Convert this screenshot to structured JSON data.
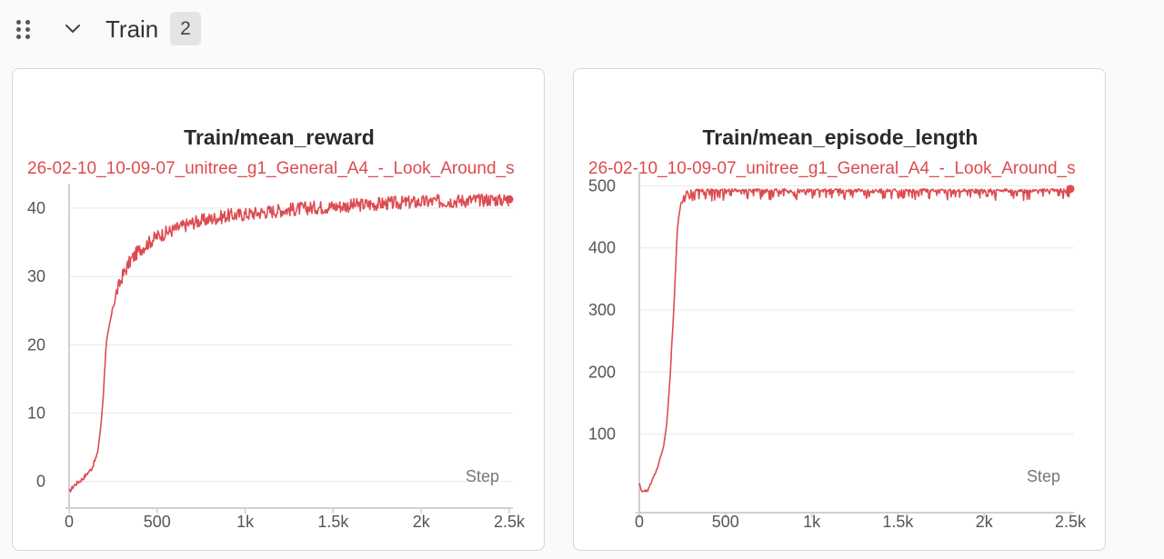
{
  "section": {
    "title": "Train",
    "count": "2"
  },
  "icons": {
    "drag": "drag-handle-icon",
    "collapse": "chevron-down-icon"
  },
  "colors": {
    "series": "#dd4b50",
    "grid": "#e8e8e8",
    "axis": "#d0d0d0"
  },
  "chart_data": [
    {
      "type": "line",
      "title": "Train/mean_reward",
      "xlabel": "Step",
      "ylabel": "",
      "xlim": [
        0,
        2500
      ],
      "ylim": [
        -1.5,
        42
      ],
      "xticks": [
        0,
        500,
        1000,
        1500,
        2000,
        2500
      ],
      "xtick_labels": [
        "0",
        "500",
        "1k",
        "1.5k",
        "2k",
        "2.5k"
      ],
      "yticks": [
        0,
        10,
        20,
        30,
        40
      ],
      "ytick_labels": [
        "0",
        "10",
        "20",
        "30",
        "40"
      ],
      "grid": true,
      "series": [
        {
          "name": "26-02-10_10-09-07_unitree_g1_General_A4_-_Look_Around_s",
          "x": [
            0,
            30,
            80,
            130,
            160,
            180,
            195,
            210,
            230,
            260,
            300,
            350,
            400,
            450,
            500,
            600,
            700,
            800,
            900,
            1000,
            1200,
            1400,
            1600,
            1800,
            2000,
            2200,
            2400,
            2500
          ],
          "y": [
            -1.5,
            -0.5,
            0.5,
            2.0,
            4.0,
            8.0,
            13.0,
            20.0,
            23.0,
            27.0,
            30.0,
            32.5,
            34.0,
            35.0,
            36.0,
            37.0,
            38.0,
            38.5,
            39.0,
            39.2,
            39.8,
            40.2,
            40.5,
            40.8,
            41.0,
            41.2,
            41.4,
            41.3
          ],
          "noise": 1.0
        }
      ]
    },
    {
      "type": "line",
      "title": "Train/mean_episode_length",
      "xlabel": "Step",
      "ylabel": "",
      "xlim": [
        0,
        2500
      ],
      "ylim": [
        0,
        505
      ],
      "xticks": [
        0,
        500,
        1000,
        1500,
        2000,
        2500
      ],
      "xtick_labels": [
        "0",
        "500",
        "1k",
        "1.5k",
        "2k",
        "2.5k"
      ],
      "yticks": [
        100,
        200,
        300,
        400,
        500
      ],
      "ytick_labels": [
        "100",
        "200",
        "300",
        "400",
        "500"
      ],
      "grid": true,
      "series": [
        {
          "name": "26-02-10_10-09-07_unitree_g1_General_A4_-_Look_Around_s",
          "x": [
            0,
            10,
            30,
            50,
            80,
            110,
            140,
            160,
            180,
            200,
            220,
            240,
            260,
            280,
            300,
            350,
            400,
            500,
            700,
            1000,
            1500,
            2000,
            2500
          ],
          "y": [
            20,
            10,
            8,
            10,
            30,
            50,
            80,
            120,
            200,
            300,
            430,
            470,
            480,
            490,
            495,
            495,
            495,
            495,
            495,
            495,
            495,
            495,
            495
          ],
          "noise": 8
        }
      ]
    }
  ]
}
